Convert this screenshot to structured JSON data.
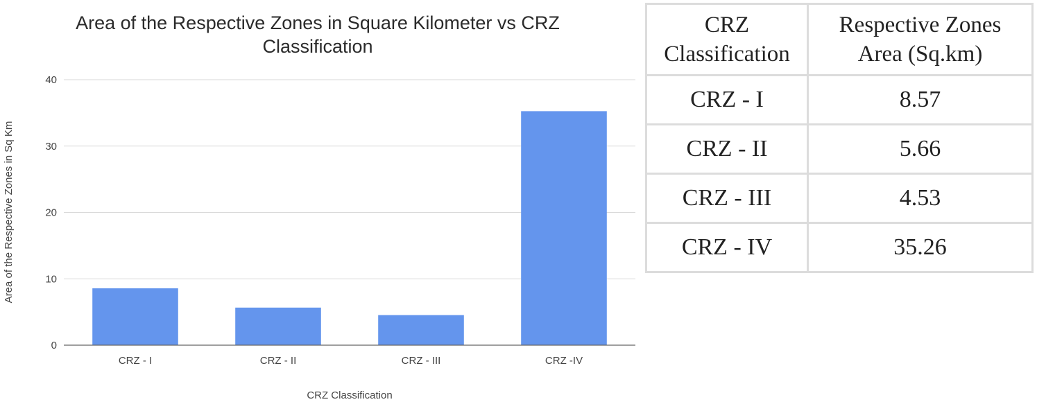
{
  "chart_data": {
    "type": "bar",
    "title_lines": [
      "Area of the Respective Zones in Square Kilometer vs CRZ",
      "Classification"
    ],
    "xlabel": "CRZ Classification",
    "ylabel": "Area of the Respective Zones in Sq Km",
    "categories": [
      "CRZ - I",
      "CRZ - II",
      "CRZ - III",
      "CRZ -IV"
    ],
    "values": [
      8.57,
      5.66,
      4.53,
      35.26
    ],
    "ylim": [
      0,
      40
    ],
    "yticks": [
      0,
      10,
      20,
      30,
      40
    ],
    "grid": true,
    "colors": {
      "bar": "#6495ed"
    }
  },
  "table": {
    "headers": [
      [
        "CRZ",
        "Classification"
      ],
      [
        "Respective Zones",
        "Area (Sq.km)"
      ]
    ],
    "rows": [
      {
        "classification": "CRZ - I",
        "area": "8.57"
      },
      {
        "classification": "CRZ - II",
        "area": "5.66"
      },
      {
        "classification": "CRZ - III",
        "area": "4.53"
      },
      {
        "classification": "CRZ - IV",
        "area": "35.26"
      }
    ]
  }
}
